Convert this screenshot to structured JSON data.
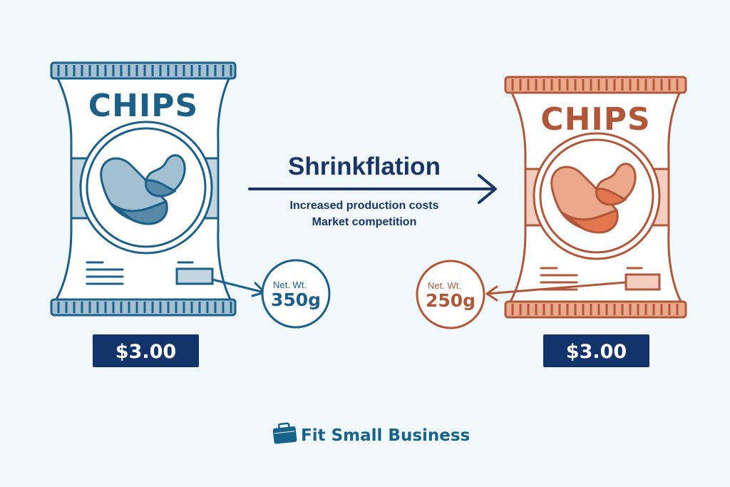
{
  "title": "Shrinkflation",
  "reasons": [
    "Increased production costs",
    "Market competition"
  ],
  "before": {
    "bag_label": "CHIPS",
    "net_wt_label": "Net. Wt.",
    "net_wt_value": "350g",
    "price": "$3.00",
    "colors": {
      "stroke": "#1b6088",
      "light": "#c3d6e0",
      "mid": "#a2c0d2",
      "dark": "#5689a8"
    }
  },
  "after": {
    "bag_label": "CHIPS",
    "net_wt_label": "Net. Wt.",
    "net_wt_value": "250g",
    "price": "$3.00",
    "colors": {
      "stroke": "#b0573a",
      "light": "#f3cdbf",
      "mid": "#eba88b",
      "dark": "#e2764e"
    }
  },
  "brand": {
    "name": "Fit Small Business",
    "color": "#17638a"
  },
  "accent": "#13336b"
}
